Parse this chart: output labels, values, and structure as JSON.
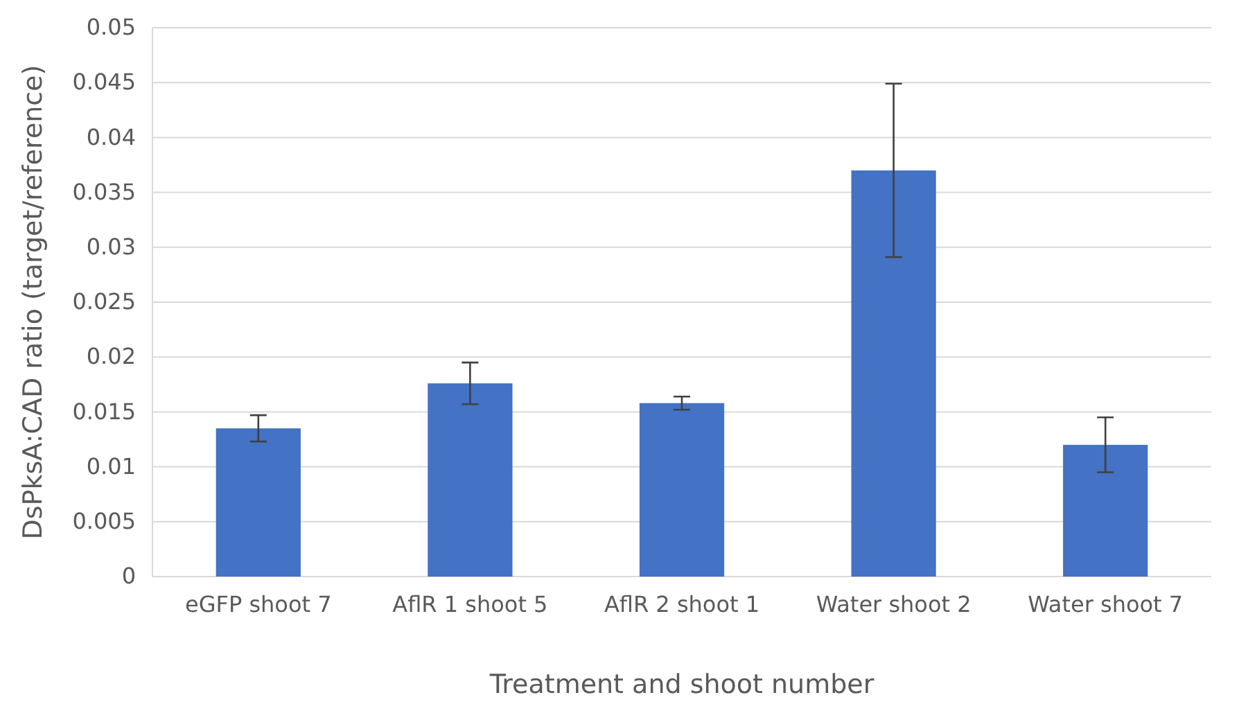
{
  "chart_data": {
    "type": "bar",
    "xlabel": "Treatment and shoot number",
    "ylabel": "DsPksA:CAD ratio (target/reference)",
    "categories": [
      "eGFP shoot 7",
      "AflR 1 shoot 5",
      "AflR 2 shoot 1",
      "Water shoot 2",
      "Water shoot 7"
    ],
    "values": [
      0.0135,
      0.0176,
      0.0158,
      0.037,
      0.012
    ],
    "errors": [
      0.0012,
      0.0019,
      0.0006,
      0.0079,
      0.0025
    ],
    "color": "#4472c4",
    "ylim": [
      0,
      0.05
    ],
    "yticks": [
      0,
      0.005,
      0.01,
      0.015,
      0.02,
      0.025,
      0.03,
      0.035,
      0.04,
      0.045,
      0.05
    ],
    "grid": "y"
  }
}
